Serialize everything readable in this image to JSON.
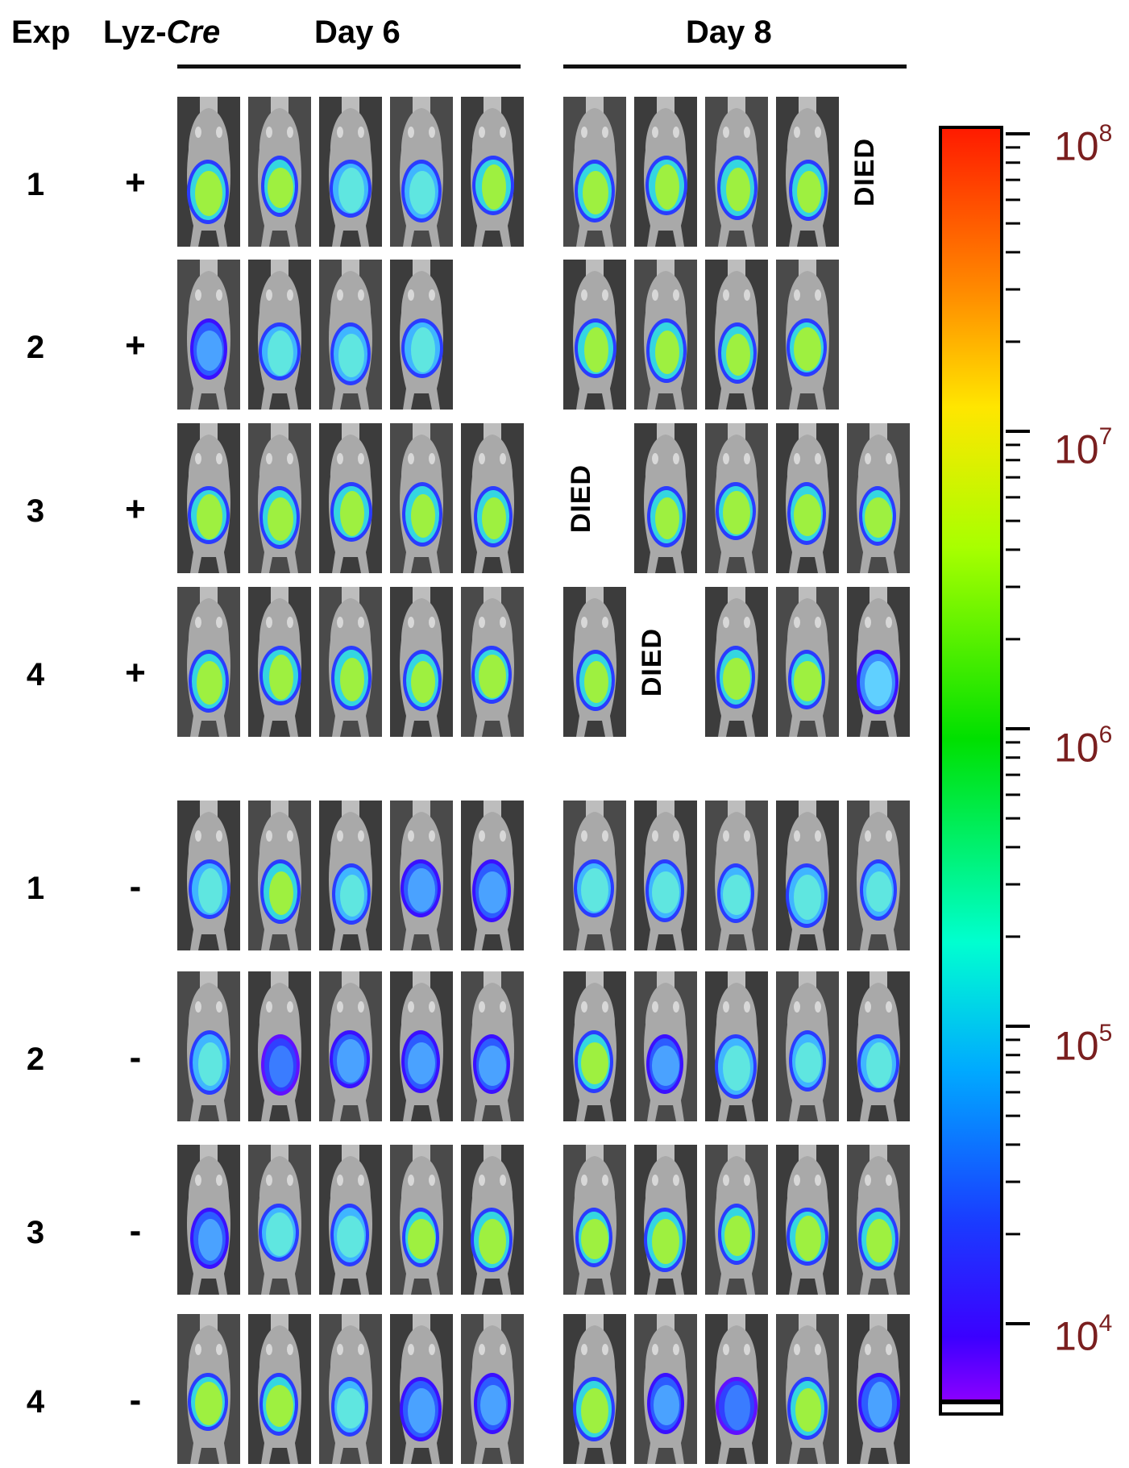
{
  "header": {
    "exp": "Exp",
    "genotype_prefix": "Lyz-",
    "genotype_italic": "Cre",
    "day6": "Day 6",
    "day8": "Day 8"
  },
  "died_label": "DIED",
  "colorbar": {
    "labels": [
      {
        "base": "10",
        "exp": "8"
      },
      {
        "base": "10",
        "exp": "7"
      },
      {
        "base": "10",
        "exp": "6"
      },
      {
        "base": "10",
        "exp": "5"
      },
      {
        "base": "10",
        "exp": "4"
      }
    ],
    "colors": [
      "#ff1a00",
      "#ff8c00",
      "#ffe600",
      "#a8ff00",
      "#00e000",
      "#00ffd0",
      "#00aaff",
      "#1a3bff",
      "#3b00ff",
      "#8a00ff"
    ]
  },
  "rows": [
    {
      "exp": "1",
      "cre": "+",
      "day6": [
        "green",
        "green",
        "cyan",
        "cyan",
        "green"
      ],
      "day8": [
        "green",
        "green",
        "green",
        "green",
        "died"
      ]
    },
    {
      "exp": "2",
      "cre": "+",
      "day6": [
        "blue",
        "cyan",
        "cyan",
        "cyan"
      ],
      "day8": [
        "green",
        "green",
        "green",
        "green"
      ]
    },
    {
      "exp": "3",
      "cre": "+",
      "day6": [
        "green",
        "green",
        "green",
        "green",
        "green"
      ],
      "day8": [
        "died",
        "green",
        "green",
        "green",
        "green"
      ]
    },
    {
      "exp": "4",
      "cre": "+",
      "day6": [
        "green",
        "green",
        "green",
        "green",
        "green"
      ],
      "day8": [
        "green",
        "died",
        "green",
        "green",
        "lowcyan"
      ]
    },
    {
      "exp": "1",
      "cre": "-",
      "day6": [
        "cyan",
        "green",
        "cyan",
        "blue",
        "blue"
      ],
      "day8": [
        "cyan",
        "cyan",
        "cyan",
        "cyan",
        "cyan"
      ]
    },
    {
      "exp": "2",
      "cre": "-",
      "day6": [
        "cyan",
        "faint",
        "blue",
        "blue",
        "blue"
      ],
      "day8": [
        "green",
        "blue",
        "cyan",
        "cyan",
        "cyan"
      ]
    },
    {
      "exp": "3",
      "cre": "-",
      "day6": [
        "blue",
        "cyan",
        "cyan",
        "green",
        "green"
      ],
      "day8": [
        "green",
        "green",
        "green",
        "green",
        "green"
      ]
    },
    {
      "exp": "4",
      "cre": "-",
      "day6": [
        "green",
        "green",
        "cyan",
        "blue",
        "blue"
      ],
      "day8": [
        "green",
        "blue",
        "faint",
        "green",
        "blue"
      ]
    }
  ]
}
